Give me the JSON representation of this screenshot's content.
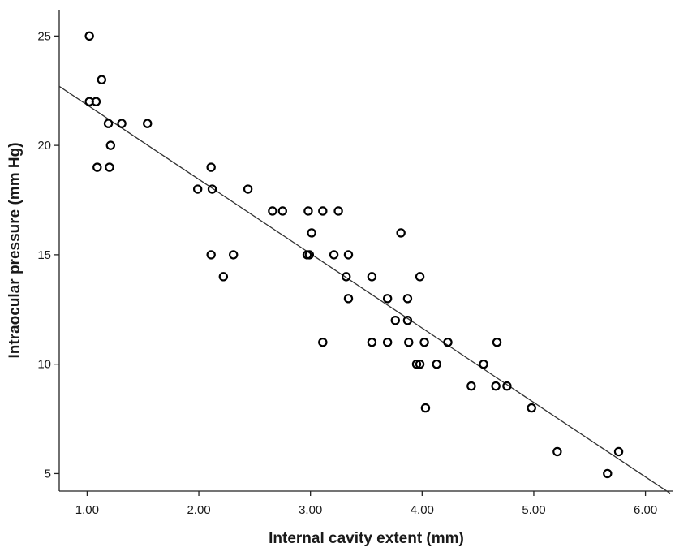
{
  "chart_data": {
    "type": "scatter",
    "title": "",
    "xlabel": "Internal cavity extent (mm)",
    "ylabel": "Intraocular pressure (mm Hg)",
    "xlim": [
      0.75,
      6.25
    ],
    "ylim": [
      4.2,
      26.2
    ],
    "x_ticks": [
      1.0,
      2.0,
      3.0,
      4.0,
      5.0,
      6.0
    ],
    "x_tick_labels": [
      "1.00",
      "2.00",
      "3.00",
      "4.00",
      "5.00",
      "6.00"
    ],
    "y_ticks": [
      5,
      10,
      15,
      20,
      25
    ],
    "y_tick_labels": [
      "5",
      "10",
      "15",
      "20",
      "25"
    ],
    "grid": false,
    "legend": "none",
    "marker": "open-circle",
    "colors": {
      "points": "#000000",
      "fit_line": "#333333",
      "axes": "#222222"
    },
    "series": [
      {
        "points": [
          [
            1.02,
            25
          ],
          [
            1.13,
            23
          ],
          [
            1.02,
            22
          ],
          [
            1.08,
            22
          ],
          [
            1.19,
            21
          ],
          [
            1.31,
            21
          ],
          [
            1.54,
            21
          ],
          [
            1.21,
            20
          ],
          [
            1.09,
            19
          ],
          [
            1.2,
            19
          ],
          [
            2.11,
            19
          ],
          [
            1.99,
            18
          ],
          [
            2.12,
            18
          ],
          [
            2.44,
            18
          ],
          [
            2.66,
            17
          ],
          [
            2.75,
            17
          ],
          [
            2.98,
            17
          ],
          [
            3.11,
            17
          ],
          [
            3.25,
            17
          ],
          [
            3.01,
            16
          ],
          [
            3.81,
            16
          ],
          [
            2.11,
            15
          ],
          [
            2.31,
            15
          ],
          [
            2.97,
            15
          ],
          [
            2.99,
            15
          ],
          [
            3.21,
            15
          ],
          [
            3.34,
            15
          ],
          [
            2.22,
            14
          ],
          [
            3.32,
            14
          ],
          [
            3.55,
            14
          ],
          [
            3.98,
            14
          ],
          [
            3.34,
            13
          ],
          [
            3.69,
            13
          ],
          [
            3.87,
            13
          ],
          [
            3.76,
            12
          ],
          [
            3.87,
            12
          ],
          [
            3.11,
            11
          ],
          [
            3.55,
            11
          ],
          [
            3.69,
            11
          ],
          [
            3.88,
            11
          ],
          [
            4.02,
            11
          ],
          [
            4.23,
            11
          ],
          [
            4.67,
            11
          ],
          [
            3.95,
            10
          ],
          [
            3.98,
            10
          ],
          [
            4.13,
            10
          ],
          [
            4.55,
            10
          ],
          [
            4.44,
            9
          ],
          [
            4.66,
            9
          ],
          [
            4.76,
            9
          ],
          [
            4.03,
            8
          ],
          [
            4.98,
            8
          ],
          [
            5.21,
            6
          ],
          [
            5.76,
            6
          ],
          [
            5.66,
            5
          ]
        ]
      }
    ],
    "fit_line": {
      "x": [
        0.75,
        6.22
      ],
      "y": [
        22.7,
        4.1
      ]
    }
  }
}
